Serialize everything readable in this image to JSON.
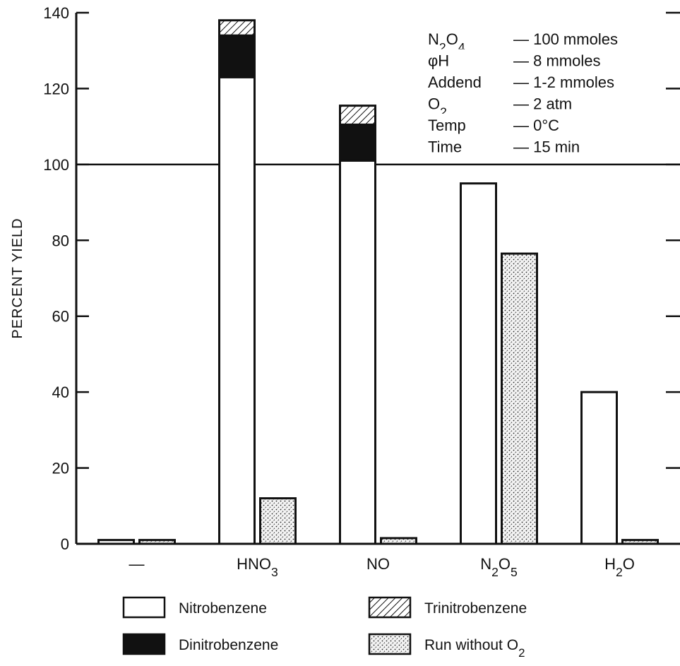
{
  "chart_data": {
    "type": "bar",
    "stacked": true,
    "ylabel": "PERCENT YIELD",
    "xlabel": "",
    "ylim": [
      0,
      140
    ],
    "yticks": [
      0,
      20,
      40,
      60,
      80,
      100,
      120,
      140
    ],
    "grid": false,
    "reference_line_y": 100,
    "categories": [
      {
        "parts": [
          {
            "t": "—"
          }
        ]
      },
      {
        "parts": [
          {
            "t": "HNO"
          },
          {
            "t": "3",
            "sub": true
          }
        ]
      },
      {
        "parts": [
          {
            "t": "NO"
          }
        ]
      },
      {
        "parts": [
          {
            "t": "N"
          },
          {
            "t": "2",
            "sub": true
          },
          {
            "t": "O"
          },
          {
            "t": "5",
            "sub": true
          }
        ]
      },
      {
        "parts": [
          {
            "t": "H"
          },
          {
            "t": "2",
            "sub": true
          },
          {
            "t": "O"
          }
        ]
      }
    ],
    "series": [
      {
        "name": "Nitrobenzene",
        "pattern": "white",
        "group": "with_O2",
        "values": [
          1,
          123,
          101,
          95,
          40
        ]
      },
      {
        "name": "Dinitrobenzene",
        "pattern": "black",
        "group": "with_O2",
        "values": [
          0,
          11,
          9.5,
          0,
          0
        ]
      },
      {
        "name": "Trinitrobenzene",
        "pattern": "hatch",
        "group": "with_O2",
        "values": [
          0,
          4,
          5,
          0,
          0
        ]
      },
      {
        "name": "Run without O2",
        "pattern": "dots",
        "group": "without_O2",
        "values": [
          1,
          12,
          1.5,
          76.5,
          1
        ]
      }
    ],
    "conditions": [
      {
        "param": [
          {
            "t": "N"
          },
          {
            "t": "2",
            "sub": true
          },
          {
            "t": "O"
          },
          {
            "t": "4",
            "sub": true
          }
        ],
        "value": "— 100 mmoles"
      },
      {
        "param": [
          {
            "t": "φH"
          }
        ],
        "value": "— 8 mmoles"
      },
      {
        "param": [
          {
            "t": "Addend"
          }
        ],
        "value": "— 1-2 mmoles"
      },
      {
        "param": [
          {
            "t": "O"
          },
          {
            "t": "2",
            "sub": true
          }
        ],
        "value": "— 2 atm"
      },
      {
        "param": [
          {
            "t": "Temp"
          }
        ],
        "value": "— 0°C"
      },
      {
        "param": [
          {
            "t": "Time"
          }
        ],
        "value": "— 15 min"
      }
    ],
    "legend": {
      "placement": "bottom",
      "items": [
        {
          "pattern": "white",
          "parts": [
            {
              "t": "Nitrobenzene"
            }
          ]
        },
        {
          "pattern": "hatch",
          "parts": [
            {
              "t": "Trinitrobenzene"
            }
          ]
        },
        {
          "pattern": "black",
          "parts": [
            {
              "t": "Dinitrobenzene"
            }
          ]
        },
        {
          "pattern": "dots",
          "parts": [
            {
              "t": "Run without O"
            },
            {
              "t": "2",
              "sub": true
            }
          ]
        }
      ]
    }
  }
}
